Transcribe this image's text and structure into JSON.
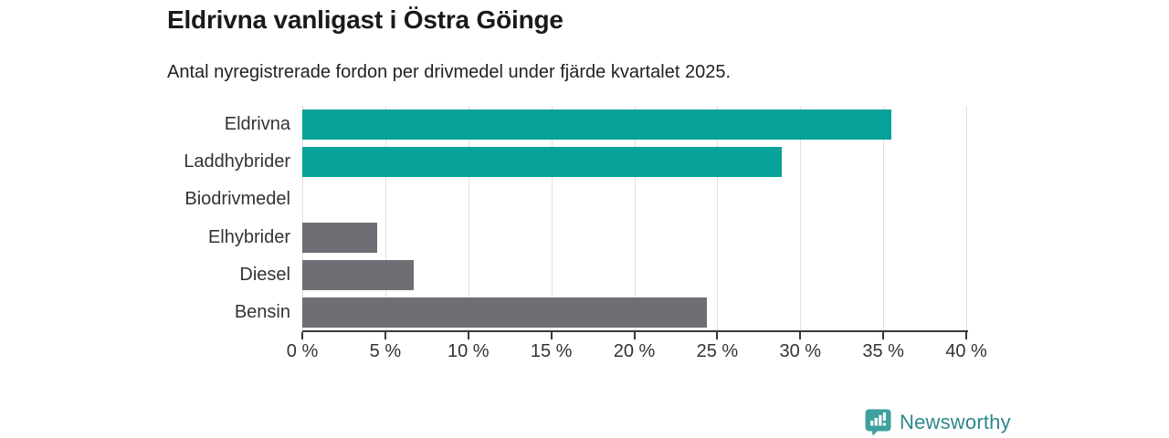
{
  "header": {
    "title": "Eldrivna vanligast i Östra Göinge",
    "subtitle": "Antal nyregistrerade fordon per drivmedel under fjärde kvartalet 2025."
  },
  "chart_data": {
    "type": "bar",
    "orientation": "horizontal",
    "title": "Eldrivna vanligast i Östra Göinge",
    "subtitle": "Antal nyregistrerade fordon per drivmedel under fjärde kvartalet 2025.",
    "categories": [
      "Eldrivna",
      "Laddhybrider",
      "Biodrivmedel",
      "Elhybrider",
      "Diesel",
      "Bensin"
    ],
    "values": [
      35.5,
      28.9,
      0,
      4.5,
      6.7,
      24.4
    ],
    "unit": "%",
    "xlabel": "",
    "ylabel": "",
    "xlim": [
      0,
      40
    ],
    "xticks": [
      0,
      5,
      10,
      15,
      20,
      25,
      30,
      35,
      40
    ],
    "xtick_labels": [
      "0 %",
      "5 %",
      "10 %",
      "15 %",
      "20 %",
      "25 %",
      "30 %",
      "35 %",
      "40 %"
    ],
    "bar_colors": [
      "#06a29a",
      "#06a29a",
      "#6e6e74",
      "#6e6e74",
      "#6e6e74",
      "#6e6e74"
    ],
    "grid": true,
    "gridline_color": "#e0e0e0",
    "axis_color": "#3a3a3a",
    "label_color": "#333333",
    "legend": "none"
  },
  "footer": {
    "brand": "Newsworthy",
    "brand_color": "#2e878b",
    "icon": "newsworthy-chart-bubble-icon",
    "icon_color": "#3ea19e"
  }
}
